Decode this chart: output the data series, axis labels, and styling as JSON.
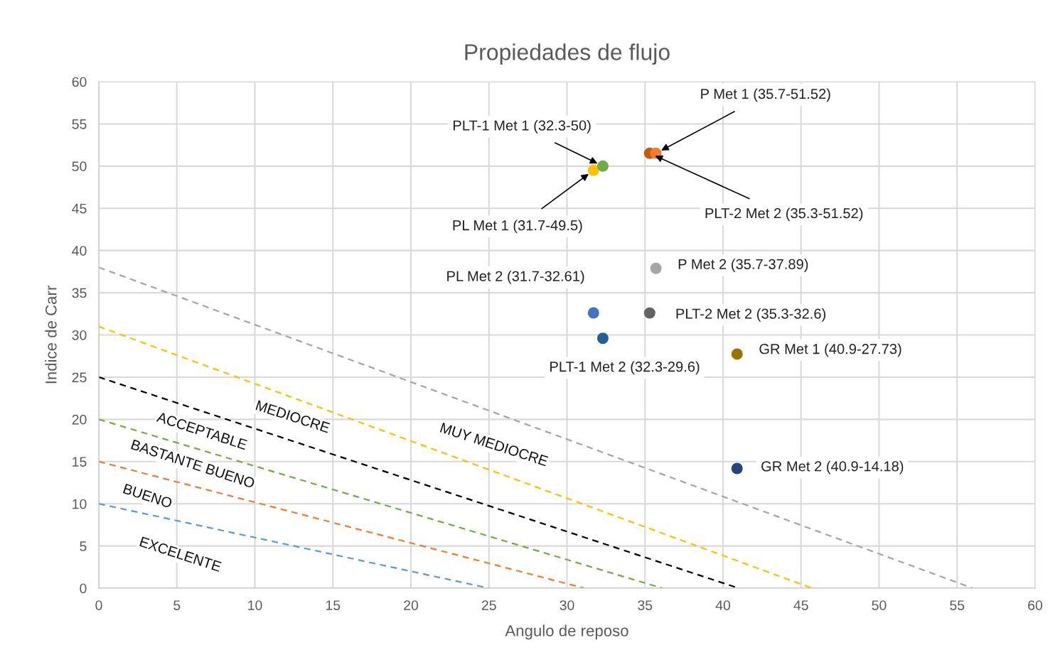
{
  "chart_data": {
    "type": "scatter",
    "title": "Propiedades de flujo",
    "xlabel": "Angulo de reposo",
    "ylabel": "Indice de Carr",
    "xlim": [
      0,
      60
    ],
    "ylim": [
      0,
      60
    ],
    "xticks": [
      0,
      5,
      10,
      15,
      20,
      25,
      30,
      35,
      40,
      45,
      50,
      55,
      60
    ],
    "yticks": [
      0,
      5,
      10,
      15,
      20,
      25,
      30,
      35,
      40,
      45,
      50,
      55,
      60
    ],
    "grid": true,
    "legend": false,
    "marker": "circle",
    "series": [
      {
        "type": "line",
        "line_style": "dashed",
        "marker": "none",
        "color": "#5b9bd5",
        "x": [
          0,
          25
        ],
        "values": [
          10,
          0
        ]
      },
      {
        "type": "line",
        "line_style": "dashed",
        "marker": "none",
        "color": "#ed7d31",
        "x": [
          0,
          31.1
        ],
        "values": [
          15,
          0
        ]
      },
      {
        "type": "line",
        "line_style": "dashed",
        "marker": "none",
        "color": "#70ad47",
        "x": [
          0,
          36.1
        ],
        "values": [
          20,
          0
        ]
      },
      {
        "type": "line",
        "line_style": "dashed",
        "marker": "none",
        "color": "#000000",
        "x": [
          0,
          41
        ],
        "values": [
          25,
          0
        ]
      },
      {
        "type": "line",
        "line_style": "dashed",
        "marker": "none",
        "color": "#ffc000",
        "x": [
          0,
          45.7
        ],
        "values": [
          31,
          0
        ]
      },
      {
        "type": "line",
        "line_style": "dashed",
        "marker": "none",
        "color": "#a5a5a5",
        "x": [
          0,
          56
        ],
        "values": [
          38,
          0
        ]
      },
      {
        "name": "PL Met 1 (31.7-49.5)",
        "color": "#ffc000",
        "x": [
          31.7
        ],
        "values": [
          49.5
        ]
      },
      {
        "name": "PLT-1 Met 1 (32.3-50)",
        "color": "#70ad47",
        "x": [
          32.3
        ],
        "values": [
          50
        ]
      },
      {
        "name": "PLT-2 Met 2 (35.3-51.52)",
        "color": "#c55a11",
        "x": [
          35.3
        ],
        "values": [
          51.52
        ]
      },
      {
        "name": "P Met 1 (35.7-51.52)",
        "color": "#ed7d31",
        "x": [
          35.7
        ],
        "values": [
          51.52
        ]
      },
      {
        "name": "P Met 2 (35.7-37.89)",
        "color": "#a5a5a5",
        "x": [
          35.7
        ],
        "values": [
          37.89
        ]
      },
      {
        "name": "PL Met 2 (31.7-32.61)",
        "color": "#4472c4",
        "x": [
          31.7
        ],
        "values": [
          32.61
        ]
      },
      {
        "name": "PLT-2 Met 2 (35.3-32.6)",
        "color": "#636363",
        "x": [
          35.3
        ],
        "values": [
          32.6
        ]
      },
      {
        "name": "PLT-1 Met 2 (32.3-29.6)",
        "color": "#255e91",
        "x": [
          32.3
        ],
        "values": [
          29.6
        ]
      },
      {
        "name": "GR Met 1 (40.9-27.73)",
        "color": "#997300",
        "x": [
          40.9
        ],
        "values": [
          27.73
        ]
      },
      {
        "name": "GR Met 2 (40.9-14.18)",
        "color": "#264478",
        "x": [
          40.9
        ],
        "values": [
          14.18
        ]
      }
    ],
    "annotations": [
      "MEDIOCRE",
      "ACCEPTABLE",
      "BASTANTE BUENO",
      "BUENO",
      "EXCELENTE",
      "MUY MEDIOCRE"
    ]
  }
}
